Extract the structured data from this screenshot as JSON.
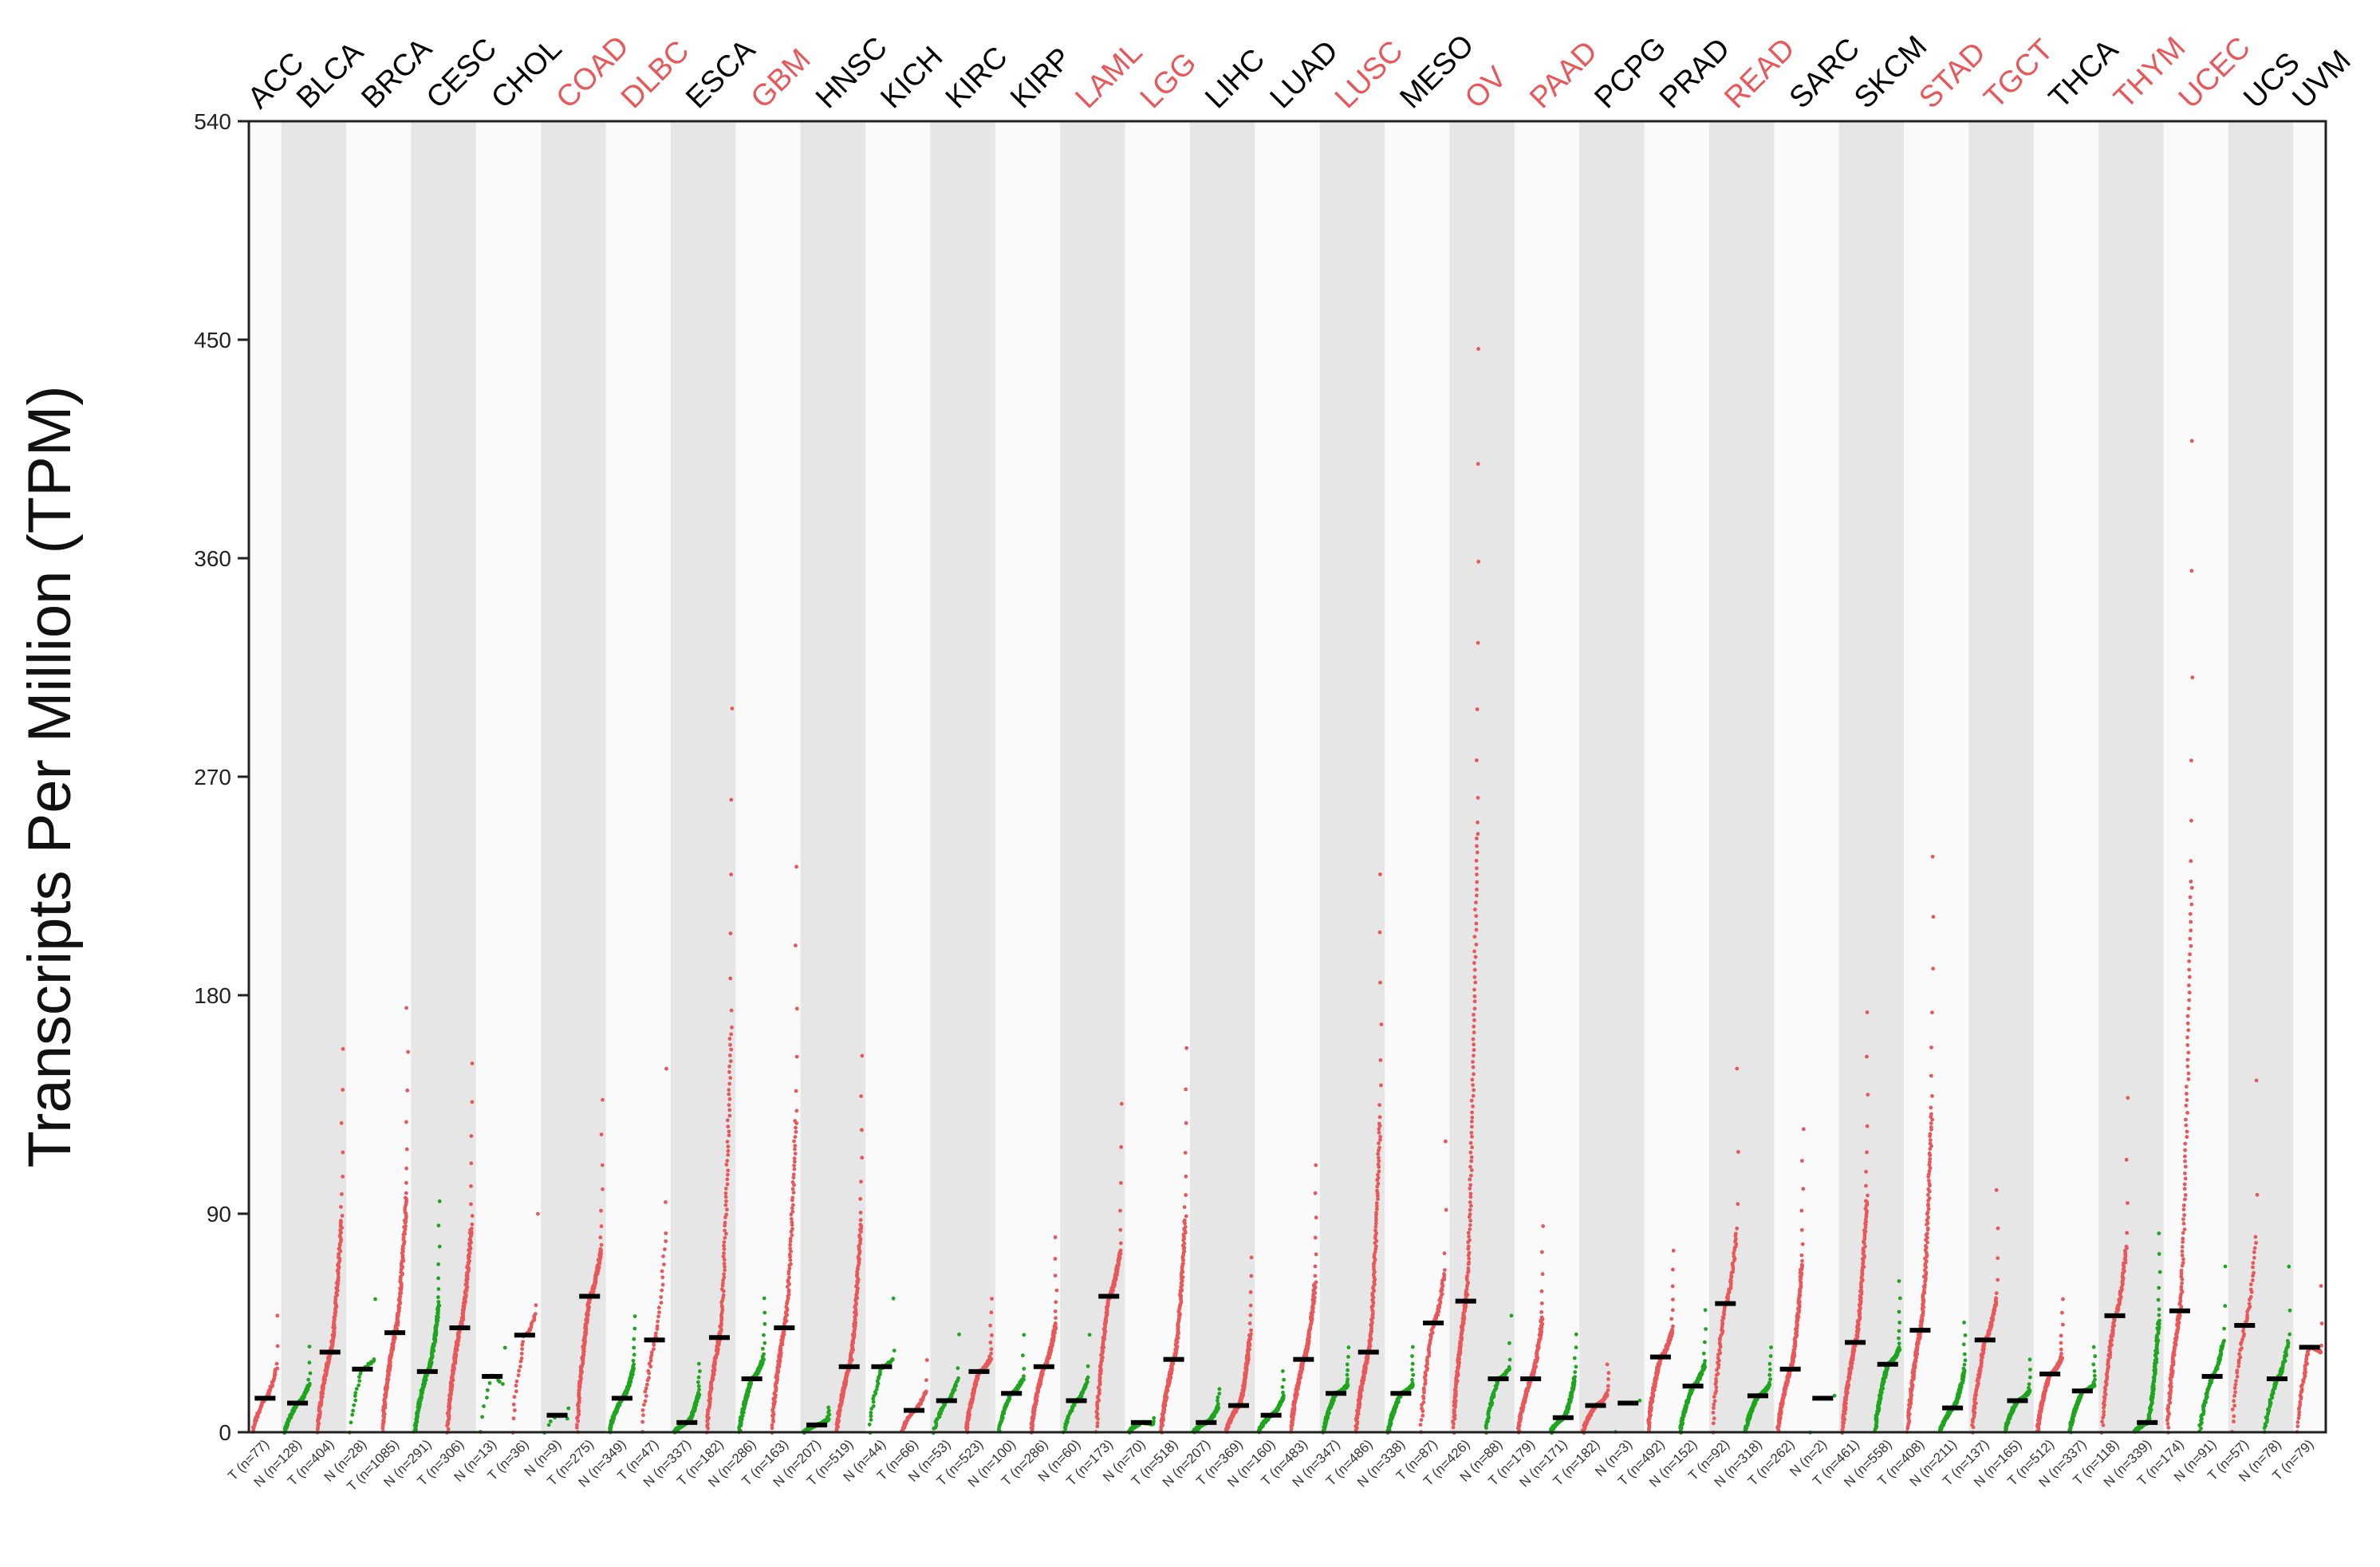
{
  "chart_data": {
    "type": "scatter",
    "ylabel": "Transcripts Per Million (TPM)",
    "ylim": [
      0,
      540
    ],
    "yticks": [
      0,
      90,
      180,
      270,
      360,
      450,
      540
    ],
    "colors": {
      "tumor": "#e8585a",
      "normal": "#1fa51f",
      "median": "#000000",
      "highlight_label": "#e8585a",
      "label": "#000000",
      "band": "#e6e6e6",
      "band_light": "#fafafa"
    },
    "cancers": [
      {
        "name": "ACC",
        "highlight": false,
        "groups": [
          {
            "label": "T (n=77)",
            "kind": "T",
            "n": 77,
            "median": 14,
            "max": 48
          }
        ]
      },
      {
        "name": "BLCA",
        "highlight": false,
        "groups": [
          {
            "label": "N (n=128)",
            "kind": "N",
            "n": 128,
            "median": 12,
            "max": 35
          },
          {
            "label": "T (n=404)",
            "kind": "T",
            "n": 404,
            "median": 33,
            "max": 158
          }
        ]
      },
      {
        "name": "BRCA",
        "highlight": false,
        "groups": [
          {
            "label": "N (n=28)",
            "kind": "N",
            "n": 28,
            "median": 26,
            "max": 55
          },
          {
            "label": "T (n=1085)",
            "kind": "T",
            "n": 1085,
            "median": 41,
            "max": 175
          }
        ]
      },
      {
        "name": "CESC",
        "highlight": false,
        "groups": [
          {
            "label": "N (n=291)",
            "kind": "N",
            "n": 291,
            "median": 25,
            "max": 95
          },
          {
            "label": "T (n=306)",
            "kind": "T",
            "n": 306,
            "median": 43,
            "max": 152
          }
        ]
      },
      {
        "name": "CHOL",
        "highlight": false,
        "groups": [
          {
            "label": "N (n=13)",
            "kind": "N",
            "n": 13,
            "median": 23,
            "max": 35
          },
          {
            "label": "T (n=36)",
            "kind": "T",
            "n": 36,
            "median": 40,
            "max": 90
          }
        ]
      },
      {
        "name": "COAD",
        "highlight": true,
        "groups": [
          {
            "label": "N (n=9)",
            "kind": "N",
            "n": 9,
            "median": 7,
            "max": 10
          },
          {
            "label": "T (n=275)",
            "kind": "T",
            "n": 275,
            "median": 56,
            "max": 137
          }
        ]
      },
      {
        "name": "DLBC",
        "highlight": true,
        "groups": [
          {
            "label": "N (n=349)",
            "kind": "N",
            "n": 349,
            "median": 14,
            "max": 48
          },
          {
            "label": "T (n=47)",
            "kind": "T",
            "n": 47,
            "median": 38,
            "max": 150
          }
        ]
      },
      {
        "name": "ESCA",
        "highlight": false,
        "groups": [
          {
            "label": "N (n=337)",
            "kind": "N",
            "n": 337,
            "median": 4,
            "max": 28
          },
          {
            "label": "T (n=182)",
            "kind": "T",
            "n": 182,
            "median": 39,
            "max": 298
          }
        ]
      },
      {
        "name": "GBM",
        "highlight": true,
        "groups": [
          {
            "label": "N (n=286)",
            "kind": "N",
            "n": 286,
            "median": 22,
            "max": 55
          },
          {
            "label": "T (n=163)",
            "kind": "T",
            "n": 163,
            "median": 43,
            "max": 233
          }
        ]
      },
      {
        "name": "HNSC",
        "highlight": false,
        "groups": [
          {
            "label": "N (n=207)",
            "kind": "N",
            "n": 207,
            "median": 3,
            "max": 10
          },
          {
            "label": "T (n=519)",
            "kind": "T",
            "n": 519,
            "median": 27,
            "max": 155
          }
        ]
      },
      {
        "name": "KICH",
        "highlight": false,
        "groups": [
          {
            "label": "N (n=44)",
            "kind": "N",
            "n": 44,
            "median": 27,
            "max": 55
          },
          {
            "label": "T (n=66)",
            "kind": "T",
            "n": 66,
            "median": 9,
            "max": 30
          }
        ]
      },
      {
        "name": "KIRC",
        "highlight": false,
        "groups": [
          {
            "label": "N (n=53)",
            "kind": "N",
            "n": 53,
            "median": 13,
            "max": 40
          },
          {
            "label": "T (n=523)",
            "kind": "T",
            "n": 523,
            "median": 25,
            "max": 55
          }
        ]
      },
      {
        "name": "KIRP",
        "highlight": false,
        "groups": [
          {
            "label": "N (n=100)",
            "kind": "N",
            "n": 100,
            "median": 16,
            "max": 40
          },
          {
            "label": "T (n=286)",
            "kind": "T",
            "n": 286,
            "median": 27,
            "max": 80
          }
        ]
      },
      {
        "name": "LAML",
        "highlight": true,
        "groups": [
          {
            "label": "N (n=60)",
            "kind": "N",
            "n": 60,
            "median": 13,
            "max": 40
          },
          {
            "label": "T (n=173)",
            "kind": "T",
            "n": 173,
            "median": 56,
            "max": 135
          }
        ]
      },
      {
        "name": "LGG",
        "highlight": true,
        "groups": [
          {
            "label": "N (n=70)",
            "kind": "N",
            "n": 70,
            "median": 4,
            "max": 6
          },
          {
            "label": "T (n=518)",
            "kind": "T",
            "n": 518,
            "median": 30,
            "max": 158
          }
        ]
      },
      {
        "name": "LIHC",
        "highlight": false,
        "groups": [
          {
            "label": "N (n=207)",
            "kind": "N",
            "n": 207,
            "median": 4,
            "max": 18
          },
          {
            "label": "T (n=369)",
            "kind": "T",
            "n": 369,
            "median": 11,
            "max": 72
          }
        ]
      },
      {
        "name": "LUAD",
        "highlight": false,
        "groups": [
          {
            "label": "N (n=160)",
            "kind": "N",
            "n": 160,
            "median": 7,
            "max": 25
          },
          {
            "label": "T (n=483)",
            "kind": "T",
            "n": 483,
            "median": 30,
            "max": 110
          }
        ]
      },
      {
        "name": "LUSC",
        "highlight": true,
        "groups": [
          {
            "label": "N (n=347)",
            "kind": "N",
            "n": 347,
            "median": 16,
            "max": 35
          },
          {
            "label": "T (n=486)",
            "kind": "T",
            "n": 486,
            "median": 33,
            "max": 230
          }
        ]
      },
      {
        "name": "MESO",
        "highlight": false,
        "groups": [
          {
            "label": "N (n=338)",
            "kind": "N",
            "n": 338,
            "median": 16,
            "max": 35
          },
          {
            "label": "T (n=87)",
            "kind": "T",
            "n": 87,
            "median": 45,
            "max": 120
          }
        ]
      },
      {
        "name": "OV",
        "highlight": true,
        "groups": [
          {
            "label": "T (n=426)",
            "kind": "T",
            "n": 426,
            "median": 54,
            "max": 446
          },
          {
            "label": "N (n=88)",
            "kind": "N",
            "n": 88,
            "median": 22,
            "max": 48
          }
        ]
      },
      {
        "name": "PAAD",
        "highlight": true,
        "groups": [
          {
            "label": "T (n=179)",
            "kind": "T",
            "n": 179,
            "median": 22,
            "max": 85
          },
          {
            "label": "N (n=171)",
            "kind": "N",
            "n": 171,
            "median": 6,
            "max": 40
          }
        ]
      },
      {
        "name": "PCPG",
        "highlight": false,
        "groups": [
          {
            "label": "T (n=182)",
            "kind": "T",
            "n": 182,
            "median": 11,
            "max": 28
          },
          {
            "label": "N (n=3)",
            "kind": "N",
            "n": 3,
            "median": 12,
            "max": 13
          }
        ]
      },
      {
        "name": "PRAD",
        "highlight": false,
        "groups": [
          {
            "label": "T (n=492)",
            "kind": "T",
            "n": 492,
            "median": 31,
            "max": 75
          },
          {
            "label": "N (n=152)",
            "kind": "N",
            "n": 152,
            "median": 19,
            "max": 50
          }
        ]
      },
      {
        "name": "READ",
        "highlight": true,
        "groups": [
          {
            "label": "T (n=92)",
            "kind": "T",
            "n": 92,
            "median": 53,
            "max": 150
          },
          {
            "label": "N (n=318)",
            "kind": "N",
            "n": 318,
            "median": 15,
            "max": 35
          }
        ]
      },
      {
        "name": "SARC",
        "highlight": false,
        "groups": [
          {
            "label": "T (n=262)",
            "kind": "T",
            "n": 262,
            "median": 26,
            "max": 125
          },
          {
            "label": "N (n=2)",
            "kind": "N",
            "n": 2,
            "median": 14,
            "max": 15
          }
        ]
      },
      {
        "name": "SKCM",
        "highlight": false,
        "groups": [
          {
            "label": "T (n=461)",
            "kind": "T",
            "n": 461,
            "median": 37,
            "max": 173
          },
          {
            "label": "N (n=558)",
            "kind": "N",
            "n": 558,
            "median": 28,
            "max": 62
          }
        ]
      },
      {
        "name": "STAD",
        "highlight": true,
        "groups": [
          {
            "label": "T (n=408)",
            "kind": "T",
            "n": 408,
            "median": 42,
            "max": 237
          },
          {
            "label": "N (n=211)",
            "kind": "N",
            "n": 211,
            "median": 10,
            "max": 45
          }
        ]
      },
      {
        "name": "TGCT",
        "highlight": true,
        "groups": [
          {
            "label": "T (n=137)",
            "kind": "T",
            "n": 137,
            "median": 38,
            "max": 100
          },
          {
            "label": "N (n=165)",
            "kind": "N",
            "n": 165,
            "median": 13,
            "max": 30
          }
        ]
      },
      {
        "name": "THCA",
        "highlight": false,
        "groups": [
          {
            "label": "T (n=512)",
            "kind": "T",
            "n": 512,
            "median": 24,
            "max": 55
          },
          {
            "label": "N (n=337)",
            "kind": "N",
            "n": 337,
            "median": 17,
            "max": 35
          }
        ]
      },
      {
        "name": "THYM",
        "highlight": true,
        "groups": [
          {
            "label": "T (n=118)",
            "kind": "T",
            "n": 118,
            "median": 48,
            "max": 138
          },
          {
            "label": "N (n=339)",
            "kind": "N",
            "n": 339,
            "median": 4,
            "max": 82
          }
        ]
      },
      {
        "name": "UCEC",
        "highlight": true,
        "groups": [
          {
            "label": "T (n=174)",
            "kind": "T",
            "n": 174,
            "median": 50,
            "max": 408
          },
          {
            "label": "N (n=91)",
            "kind": "N",
            "n": 91,
            "median": 23,
            "max": 68
          }
        ]
      },
      {
        "name": "UCS",
        "highlight": false,
        "groups": [
          {
            "label": "T (n=57)",
            "kind": "T",
            "n": 57,
            "median": 44,
            "max": 145
          },
          {
            "label": "N (n=78)",
            "kind": "N",
            "n": 78,
            "median": 22,
            "max": 68
          }
        ]
      },
      {
        "name": "UVM",
        "highlight": false,
        "groups": [
          {
            "label": "T (n=79)",
            "kind": "T",
            "n": 79,
            "median": 35,
            "max": 60
          }
        ]
      }
    ]
  }
}
